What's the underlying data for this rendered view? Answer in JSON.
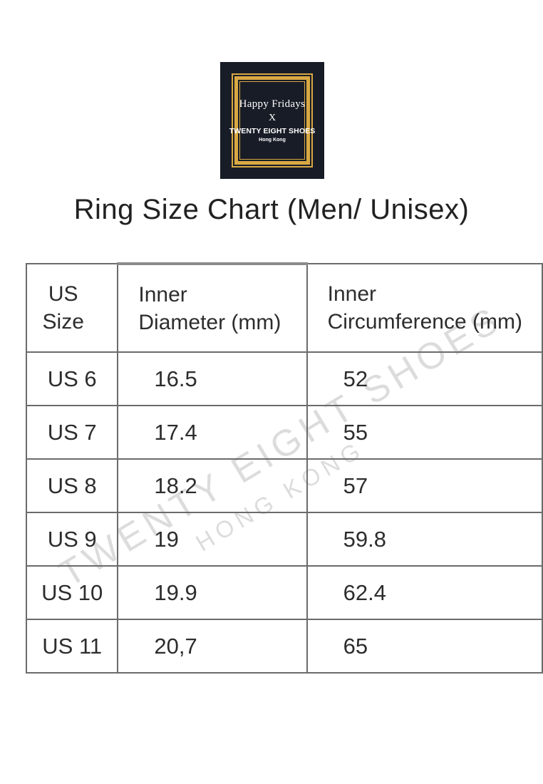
{
  "logo": {
    "line1": "Happy Fridays",
    "line2": "X",
    "line3": "TWENTY EIGHT SHOES",
    "line4": "Hong Kong",
    "bg_color": "#181c27",
    "gold_color": "#d9a843"
  },
  "title": "Ring Size Chart (Men/ Unisex)",
  "watermark": {
    "line1": "TWENTY EIGHT SHOES",
    "line2": "HONG KONG"
  },
  "table": {
    "columns": [
      [
        "US",
        "Size"
      ],
      [
        "Inner",
        "Diameter (mm)"
      ],
      [
        "Inner",
        "Circumference (mm)"
      ]
    ],
    "rows": [
      [
        "US 6",
        "16.5",
        "52"
      ],
      [
        "US 7",
        "17.4",
        "55"
      ],
      [
        "US 8",
        "18.2",
        "57"
      ],
      [
        "US 9",
        "19",
        "59.8"
      ],
      [
        "US 10",
        "19.9",
        "62.4"
      ],
      [
        "US 11",
        "20,7",
        "65"
      ]
    ],
    "border_color": "#6b6b6b"
  }
}
